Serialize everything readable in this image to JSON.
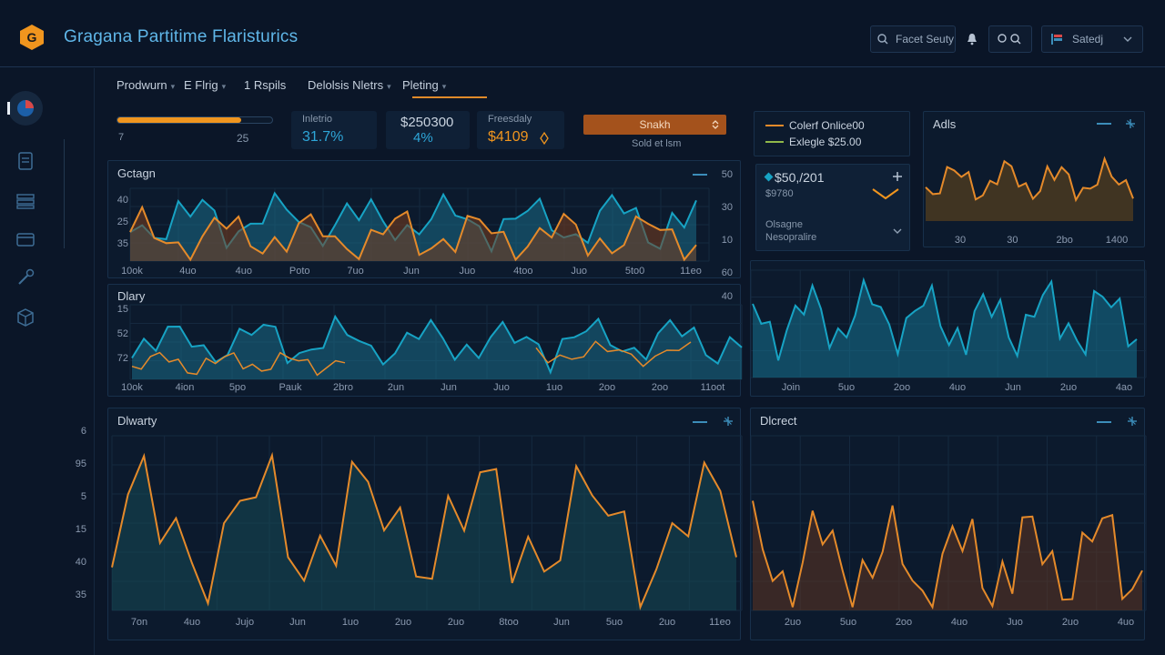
{
  "app": {
    "title": "Gragana Partitime Flaristurics",
    "logo_letter": "G"
  },
  "header": {
    "search_label": "Facet Seuty",
    "settings_label": "Satedj"
  },
  "tabs": [
    {
      "label": "Prodwurn"
    },
    {
      "label": "E Flrig"
    },
    {
      "label": "1 Rspils"
    },
    {
      "label": "Delolsis Nletrs"
    },
    {
      "label": "Pleting"
    }
  ],
  "progress": {
    "value": 0.8,
    "start_label": "7",
    "end_label": "25"
  },
  "kpis": [
    {
      "label": "Inletrio",
      "value": "31.7%"
    },
    {
      "label": "$250300",
      "value": "4%"
    },
    {
      "label": "Freesdaly",
      "value": "$4109"
    }
  ],
  "action": {
    "button_label": "Snakh",
    "sub_label": "Sold et lsm"
  },
  "legend": {
    "items": [
      {
        "label": "Colerf Onlice00",
        "color": "#e58a2a"
      },
      {
        "label": "Exlegle $25.00",
        "color": "#8fb84a"
      }
    ]
  },
  "stat_card": {
    "value": "$50,/201",
    "sub": "$9780",
    "label1": "Olsagne",
    "label2": "Nesopralire"
  },
  "colors": {
    "orange": "#e58a2a",
    "teal": "#17a3c4",
    "bg": "#0b1628"
  },
  "charts": {
    "c1": {
      "title": "Gctagn",
      "y_left": [
        "40",
        "25",
        "35"
      ],
      "y_right": [
        "50",
        "30",
        "10",
        "60"
      ],
      "x_labels": [
        "10ok",
        "4uo",
        "4uo",
        "Poto",
        "7uo",
        "Jun",
        "Juo",
        "4too",
        "Juo",
        "5to0",
        "11eo"
      ]
    },
    "c2": {
      "title": "Dlary",
      "y_left": [
        "15",
        "52",
        "72"
      ],
      "y_right": [
        "40"
      ],
      "x_labels": [
        "10ok",
        "4ion",
        "5po",
        "Pauk",
        "2bro",
        "2un",
        "Jun",
        "Juo",
        "1uo",
        "2oo",
        "2oo",
        "11oot"
      ]
    },
    "c3": {
      "title": "Adls",
      "x_labels": [
        "30",
        "30",
        "2bo",
        "1400"
      ]
    },
    "c4": {
      "x_labels": [
        "Join",
        "5uo",
        "2oo",
        "4uo",
        "Jun",
        "2uo",
        "4ao"
      ]
    },
    "c5": {
      "title": "Dlwarty",
      "y_left": [
        "6",
        "95",
        "5",
        "15",
        "40",
        "35"
      ],
      "x_labels": [
        "7on",
        "4uo",
        "Jujo",
        "Jun",
        "1uo",
        "2uo",
        "2uo",
        "8too",
        "Jun",
        "5uo",
        "2uo",
        "11eo"
      ]
    },
    "c6": {
      "title": "Dlcrect",
      "x_labels": [
        "2uo",
        "5uo",
        "2oo",
        "4uo",
        "Juo",
        "2uo",
        "4uo"
      ]
    }
  }
}
